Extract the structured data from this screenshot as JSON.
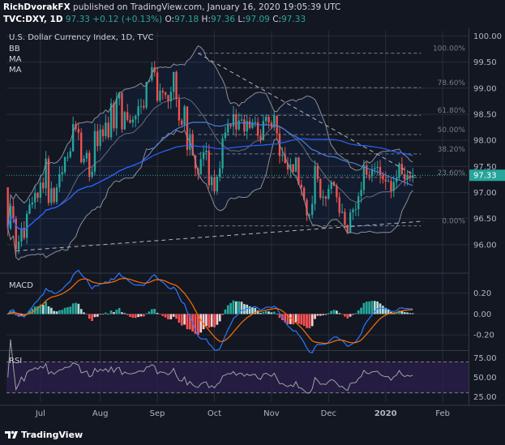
{
  "header": {
    "author": "RichDvorakFX",
    "published_text": "published on TradingView.com, January 16, 2020 19:05:39 UTC",
    "symbol": "TVC:DXY, 1D",
    "last": "97.33",
    "change": "+0.12 (+0.13%)",
    "open_label": "O:",
    "open": "97.18",
    "high_label": "H:",
    "high": "97.36",
    "low_label": "L:",
    "low": "97.09",
    "close_label": "C:",
    "close": "97.33"
  },
  "legend": {
    "title": "U.S. Dollar Currency Index, 1D, TVC",
    "items": [
      "BB",
      "MA",
      "MA"
    ]
  },
  "footer": {
    "brand": "TradingView"
  },
  "colors": {
    "bg": "#131722",
    "grid": "#2a2e39",
    "up": "#26a69a",
    "down": "#ef5350",
    "bb": "#8c8f99",
    "ma_blue": "#2962ff",
    "fib": "#787b86",
    "macd": "#2979ff",
    "signal": "#ff6d00",
    "rsi": "#9fa3a8",
    "rsi_band": "#2a1e4a"
  },
  "chart_data": {
    "type": "candlestick",
    "title": "U.S. Dollar Currency Index, 1D, TVC",
    "x_labels": [
      "Jul",
      "Aug",
      "Sep",
      "Oct",
      "Nov",
      "Dec",
      "2020",
      "Feb"
    ],
    "x_label_positions": [
      12,
      34,
      55,
      76,
      97,
      118,
      139,
      160
    ],
    "price_axis": {
      "ylim": [
        95.5,
        100.1
      ],
      "ticks": [
        96.0,
        96.5,
        97.0,
        97.5,
        98.0,
        98.5,
        99.0,
        99.5,
        100.0
      ]
    },
    "last_price": 97.33,
    "start_price": 97.1,
    "num_bars": 150,
    "closes": [
      96.31,
      96.74,
      96.5,
      95.91,
      96.06,
      96.32,
      96.13,
      96.59,
      96.77,
      96.81,
      96.99,
      96.9,
      97.19,
      97.08,
      97.65,
      96.8,
      97.08,
      96.82,
      97.1,
      97.35,
      97.39,
      97.68,
      97.68,
      97.79,
      98.31,
      98.22,
      98.15,
      97.58,
      97.65,
      97.76,
      97.3,
      97.4,
      98.18,
      97.89,
      98.21,
      98.08,
      98.34,
      98.06,
      98.71,
      98.23,
      98.8,
      98.91,
      98.21,
      98.54,
      98.39,
      98.34,
      98.4,
      98.47,
      98.65,
      98.66,
      98.63,
      99.12,
      99.15,
      99.4,
      99.3,
      98.76,
      98.95,
      98.92,
      98.87,
      98.75,
      98.93,
      99.31,
      98.79,
      98.38,
      98.3,
      98.65,
      97.82,
      98.12,
      97.71,
      97.46,
      97.35,
      97.64,
      97.77,
      97.8,
      97.14,
      97.29,
      97.02,
      97.3,
      97.46,
      98.04,
      98.15,
      98.3,
      98.27,
      98.5,
      98.21,
      98.38,
      98.4,
      98.17,
      98.37,
      98.24,
      98.34,
      98.35,
      98.09,
      98.0,
      98.37,
      98.45,
      98.34,
      98.25,
      98.47,
      98.13,
      97.7,
      97.72,
      97.56,
      97.44,
      97.54,
      97.4,
      97.67,
      97.15,
      97.09,
      96.86,
      96.56,
      96.57,
      96.78,
      97.51,
      97.26,
      96.9,
      96.92,
      96.88,
      97.07,
      97.2,
      97.13,
      96.91,
      96.61,
      96.63,
      96.38,
      96.23,
      96.62,
      96.67,
      96.68,
      96.93,
      97.05,
      97.52,
      97.34,
      97.31,
      97.45,
      97.47,
      97.49,
      97.33,
      97.25,
      97.21,
      97.22,
      97.03,
      97.2,
      97.28,
      97.55,
      97.35,
      97.25,
      97.33,
      97.28,
      97.33
    ],
    "fibonacci": [
      {
        "label": "100.00%",
        "value": 99.67
      },
      {
        "label": "78.60%",
        "value": 99.01
      },
      {
        "label": "61.80%",
        "value": 98.48
      },
      {
        "label": "50.00%",
        "value": 98.11
      },
      {
        "label": "38.20%",
        "value": 97.74
      },
      {
        "label": "23.60%",
        "value": 97.29
      },
      {
        "label": "0.00%",
        "value": 96.36
      }
    ],
    "macd_axis": {
      "ylim": [
        -0.33,
        0.36
      ],
      "ticks": [
        0.2,
        0.0,
        -0.2
      ]
    },
    "rsi_axis": {
      "ylim": [
        18,
        82
      ],
      "ticks": [
        75.0,
        50.0,
        25.0
      ],
      "band": [
        30,
        70
      ]
    }
  }
}
